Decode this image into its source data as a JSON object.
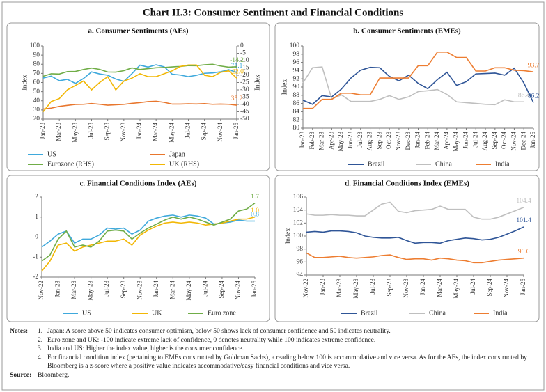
{
  "title": "Chart II.3: Consumer Sentiment and Financial Conditions",
  "chart_data": [
    {
      "type": "line",
      "title": "a. Consumer Sentiments (AEs)",
      "ylabel": "Index",
      "y2label": "Index",
      "categories": [
        "Jan-23",
        null,
        "Mar-23",
        null,
        "May-23",
        null,
        "Jul-23",
        null,
        "Sep-23",
        null,
        "Nov-23",
        null,
        "Jan-24",
        null,
        "Mar-24",
        null,
        "May-24",
        null,
        "Jul-24",
        null,
        "Sep-24",
        null,
        "Nov-24",
        null,
        "Jan-25"
      ],
      "ylim": [
        20,
        100
      ],
      "yticks": [
        20,
        30,
        40,
        50,
        60,
        70,
        80,
        90,
        100
      ],
      "y2lim": [
        -50,
        0
      ],
      "y2ticks": [
        0,
        -5,
        -10,
        -15,
        -20,
        -25,
        -30,
        -35,
        -40,
        -45,
        -50
      ],
      "grid": false,
      "series": [
        {
          "name": "US",
          "color": "#3fa9dc",
          "label_last": true,
          "values": [
            64.9,
            67,
            62,
            63.5,
            59,
            64.4,
            71.6,
            69.4,
            68,
            63.8,
            61.3,
            69.7,
            79,
            76.9,
            79.4,
            77.2,
            69.1,
            68.2,
            66.4,
            67.9,
            70.1,
            70.5,
            71.8,
            74,
            71.1
          ]
        },
        {
          "name": "Japan",
          "color": "#e8762d",
          "label_last": true,
          "values": [
            31,
            32,
            33.9,
            35,
            36,
            36.2,
            37,
            36.2,
            35.2,
            35.7,
            36.1,
            37.2,
            38,
            39.1,
            39.5,
            38.3,
            36.4,
            36.4,
            36.7,
            36.5,
            36.9,
            36.2,
            36.4,
            36.2,
            35.2
          ]
        },
        {
          "name": "Eurozone (RHS)",
          "color": "#70ad47",
          "axis": "y2",
          "label_last": true,
          "values": [
            -20.7,
            -19,
            -19.2,
            -17.5,
            -17.4,
            -16.1,
            -15.1,
            -16,
            -17.8,
            -17.9,
            -16.9,
            -15,
            -16.1,
            -15.5,
            -14.9,
            -14.7,
            -14.3,
            -14,
            -13.4,
            -13.5,
            -12.9,
            -12.5,
            -13.7,
            -14.5,
            -14.2
          ]
        },
        {
          "name": "UK (RHS)",
          "color": "#f2b705",
          "axis": "y2",
          "label_last": true,
          "values": [
            -45,
            -38,
            -36,
            -30,
            -27,
            -24,
            -30,
            -25,
            -21,
            -30,
            -24,
            -22,
            -19,
            -21,
            -21,
            -19,
            -17,
            -14,
            -13,
            -13,
            -20,
            -21,
            -18,
            -17,
            -22
          ],
          "value_labels": [
            null,
            null,
            null,
            null,
            null,
            null,
            null,
            null,
            null,
            null,
            null,
            null,
            null,
            null,
            null,
            null,
            null,
            null,
            null,
            null,
            null,
            null,
            null,
            null,
            "-22.0"
          ]
        }
      ]
    },
    {
      "type": "line",
      "title": "b. Consumer Sentiments (EMEs)",
      "ylabel": "Index",
      "categories": [
        "Jan-23",
        "Feb-23",
        "Mar-23",
        "Apr-23",
        "May-23",
        "Jun-23",
        "Jul-23",
        "Aug-23",
        "Sep-23",
        "Oct-23",
        "Nov-23",
        "Dec-23",
        "Jan-24",
        "Feb-24",
        "Mar-24",
        "Apr-24",
        "May-24",
        "Jun-24",
        "Jul-24",
        "Aug-24",
        "Sep-24",
        "Oct-24",
        "Nov-24",
        "Dec-24",
        "Jan-25"
      ],
      "ylim": [
        80,
        100
      ],
      "yticks": [
        80,
        82,
        84,
        86,
        88,
        90,
        92,
        94,
        96,
        98,
        100
      ],
      "grid": false,
      "series": [
        {
          "name": "Brazil",
          "color": "#2f5597",
          "label_last": true,
          "values": [
            86.8,
            85.8,
            87.9,
            87.6,
            89.5,
            92.2,
            94.1,
            94.8,
            94.7,
            92.6,
            91.5,
            92.9,
            90.9,
            89.6,
            91.8,
            93.6,
            90.4,
            91.3,
            93.2,
            93.3,
            93.4,
            92.9,
            94.6,
            91,
            86.2
          ]
        },
        {
          "name": "China",
          "color": "#bfbfbf",
          "label_last": true,
          "values": [
            91,
            94.7,
            94.9,
            87.1,
            88.1,
            86.5,
            86.5,
            86.5,
            87,
            87.9,
            87,
            87.6,
            88.9,
            89.1,
            89.4,
            88.2,
            86.4,
            86.2,
            86,
            85.8,
            85.7,
            86.9,
            86.4,
            86.4,
            null
          ]
        },
        {
          "name": "India",
          "color": "#ed7d31",
          "label_last": true,
          "values": [
            84.8,
            84.8,
            87,
            87,
            88.5,
            88.5,
            88.1,
            88.1,
            92.2,
            92.2,
            92.2,
            92.2,
            95.2,
            95.2,
            98.5,
            98.5,
            97.2,
            97.2,
            93.9,
            93.9,
            94.7,
            94.7,
            94.1,
            94,
            93.7
          ]
        }
      ]
    },
    {
      "type": "line",
      "title": "c. Financial Conditions Index (AEs)",
      "categories": [
        "Nov-22",
        null,
        "Jan-23",
        null,
        "Mar-23",
        null,
        "May-23",
        null,
        "Jul-23",
        null,
        "Sep-23",
        null,
        "Nov-23",
        null,
        "Jan-24",
        null,
        "Mar-24",
        null,
        "May-24",
        null,
        "Jul-24",
        null,
        "Sep-24",
        null,
        "Nov-24",
        null,
        "Jan-25"
      ],
      "ylim": [
        -2,
        2
      ],
      "yticks": [
        -2,
        -1,
        0,
        1,
        2
      ],
      "grid": false,
      "series": [
        {
          "name": "US",
          "color": "#3fa9dc",
          "label_last": true,
          "values": [
            -0.5,
            -0.2,
            0.15,
            0.3,
            -0.3,
            -0.1,
            -0.1,
            0.1,
            0.45,
            0.4,
            0.45,
            0.15,
            0.35,
            0.8,
            0.95,
            1.05,
            1.1,
            1.0,
            1.1,
            1.05,
            0.95,
            0.65,
            0.7,
            0.75,
            0.85,
            0.8,
            0.8
          ]
        },
        {
          "name": "UK",
          "color": "#f2b705",
          "label_last": true,
          "values": [
            -1.7,
            -1.2,
            -0.4,
            -0.3,
            -0.7,
            -0.5,
            -0.4,
            -0.3,
            -0.2,
            -0.2,
            -0.1,
            -0.4,
            0.1,
            0.35,
            0.55,
            0.7,
            0.75,
            0.7,
            0.75,
            0.7,
            0.6,
            0.65,
            0.7,
            0.8,
            0.9,
            0.9,
            1.0
          ],
          "value_labels": [
            null,
            null,
            null,
            null,
            null,
            null,
            null,
            null,
            null,
            null,
            null,
            null,
            null,
            null,
            null,
            null,
            null,
            null,
            null,
            null,
            null,
            null,
            null,
            null,
            null,
            null,
            "1.0"
          ]
        },
        {
          "name": "Euro zone",
          "color": "#70ad47",
          "label_last": true,
          "values": [
            -1.2,
            -0.9,
            -0.1,
            0.3,
            -0.5,
            -0.4,
            -0.5,
            -0.2,
            0.3,
            0.35,
            0.3,
            -0.1,
            0.2,
            0.45,
            0.65,
            0.85,
            1.0,
            0.9,
            1.0,
            0.9,
            0.75,
            0.6,
            0.75,
            0.9,
            1.3,
            1.4,
            1.7
          ]
        }
      ]
    },
    {
      "type": "line",
      "title": "d. Financial Conditions Index (EMEs)",
      "ylabel": "Index",
      "categories": [
        "Nov-22",
        null,
        "Jan-23",
        null,
        "Mar-23",
        null,
        "May-23",
        null,
        "Jul-23",
        null,
        "Sep-23",
        null,
        "Nov-23",
        null,
        "Jan-24",
        null,
        "Mar-24",
        null,
        "May-24",
        null,
        "Jul-24",
        null,
        "Sep-24",
        null,
        "Nov-24",
        null,
        "Jan-25"
      ],
      "ylim": [
        94,
        106
      ],
      "yticks": [
        94,
        96,
        98,
        100,
        102,
        104,
        106
      ],
      "grid": false,
      "series": [
        {
          "name": "Brazil",
          "color": "#2f5597",
          "label_last": true,
          "values": [
            100.6,
            100.7,
            100.6,
            100.8,
            100.8,
            100.7,
            100.5,
            100.0,
            99.8,
            99.7,
            99.7,
            99.8,
            99.3,
            98.9,
            99.0,
            99.0,
            98.9,
            99.3,
            99.5,
            99.7,
            99.6,
            99.4,
            99.5,
            99.8,
            100.3,
            100.8,
            101.4
          ]
        },
        {
          "name": "China",
          "color": "#bfbfbf",
          "label_last": true,
          "values": [
            103.4,
            103.2,
            103.2,
            103.3,
            103.2,
            103.2,
            103.1,
            103.1,
            104.0,
            104.9,
            105.2,
            103.8,
            103.6,
            103.9,
            104.0,
            104.1,
            104.6,
            104.1,
            104.1,
            104.1,
            102.9,
            102.6,
            102.6,
            102.9,
            103.4,
            103.9,
            104.4
          ]
        },
        {
          "name": "India",
          "color": "#ed7d31",
          "label_last": true,
          "values": [
            97.4,
            96.7,
            96.7,
            96.8,
            96.9,
            96.7,
            96.6,
            96.7,
            96.8,
            97.0,
            97.1,
            96.7,
            96.4,
            96.5,
            96.5,
            96.3,
            96.6,
            96.5,
            96.3,
            96.2,
            95.9,
            95.9,
            96.1,
            96.3,
            96.4,
            96.5,
            96.6
          ]
        }
      ]
    }
  ],
  "notes_label": "Notes:",
  "notes": [
    {
      "num": "1.",
      "text": "Japan: A score above 50 indicates consumer optimism, below 50 shows lack of consumer confidence and 50 indicates neutrality."
    },
    {
      "num": "2.",
      "text": "Euro zone and UK: -100 indicate extreme lack of confidence, 0 denotes neutrality while 100 indicates extreme confidence."
    },
    {
      "num": "3.",
      "text": "India and US: Higher the index value, higher is the consumer confidence."
    },
    {
      "num": "4.",
      "text": "For financial condition index (pertaining to EMEs constructed by Goldman Sachs), a reading below 100 is accommodative and vice versa. As for the AEs, the index constructed by Bloomberg is a z-score where a positive value indicates accommodative/easy financial conditions and vice versa."
    }
  ],
  "source_label": "Source:",
  "source": "Bloomberg."
}
